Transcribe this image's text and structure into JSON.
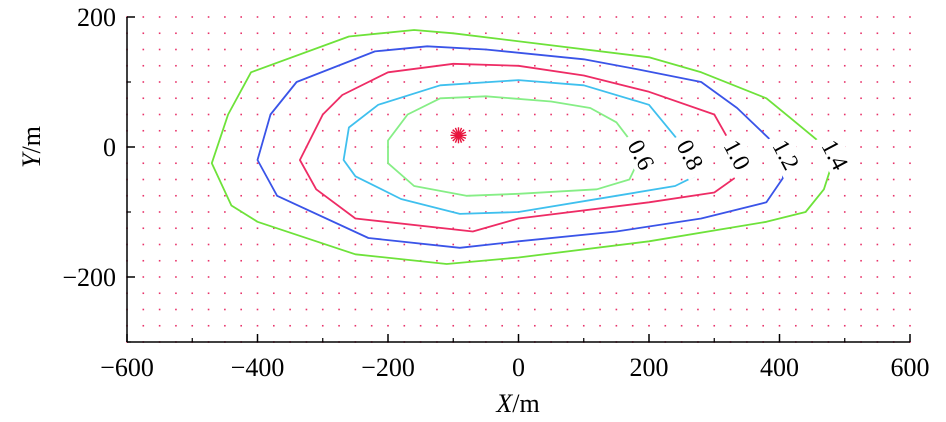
{
  "chart_data": {
    "type": "contour",
    "xlabel": {
      "var": "X",
      "unit": "/m"
    },
    "ylabel": {
      "var": "Y",
      "unit": "/m"
    },
    "xlim": [
      -600,
      600
    ],
    "ylim": [
      -300,
      200
    ],
    "xticks": [
      -600,
      -400,
      -200,
      0,
      200,
      400,
      600
    ],
    "yticks": [
      -200,
      0,
      200
    ],
    "grid": "dotted",
    "grid_color": "#e8336a",
    "source": {
      "x": -92,
      "y": 18,
      "color": "#e8143c"
    },
    "series": [
      {
        "name": "0.6",
        "color": "#86ee86",
        "label_at": [
          188,
          -12
        ],
        "label_angle": 62,
        "points": [
          [
            188,
            -12
          ],
          [
            170,
            -50
          ],
          [
            120,
            -65
          ],
          [
            0,
            -72
          ],
          [
            -80,
            -75
          ],
          [
            -160,
            -60
          ],
          [
            -200,
            -25
          ],
          [
            -200,
            10
          ],
          [
            -170,
            50
          ],
          [
            -120,
            75
          ],
          [
            -50,
            78
          ],
          [
            50,
            70
          ],
          [
            110,
            60
          ],
          [
            150,
            38
          ],
          [
            188,
            -12
          ]
        ]
      },
      {
        "name": "0.8",
        "color": "#3fc0ee",
        "label_at": [
          263,
          -12
        ],
        "label_angle": 62,
        "points": [
          [
            263,
            -12
          ],
          [
            270,
            -45
          ],
          [
            240,
            -60
          ],
          [
            150,
            -75
          ],
          [
            0,
            -100
          ],
          [
            -90,
            -103
          ],
          [
            -180,
            -80
          ],
          [
            -250,
            -45
          ],
          [
            -268,
            -20
          ],
          [
            -260,
            30
          ],
          [
            -215,
            65
          ],
          [
            -120,
            95
          ],
          [
            0,
            103
          ],
          [
            100,
            95
          ],
          [
            200,
            65
          ],
          [
            263,
            -12
          ]
        ]
      },
      {
        "name": "1.0",
        "color": "#ee2c65",
        "label_at": [
          335,
          -12
        ],
        "label_angle": 62,
        "points": [
          [
            335,
            -12
          ],
          [
            335,
            -45
          ],
          [
            300,
            -70
          ],
          [
            200,
            -85
          ],
          [
            0,
            -110
          ],
          [
            -70,
            -130
          ],
          [
            -250,
            -110
          ],
          [
            -310,
            -65
          ],
          [
            -335,
            -20
          ],
          [
            -300,
            50
          ],
          [
            -270,
            80
          ],
          [
            -200,
            115
          ],
          [
            -100,
            128
          ],
          [
            0,
            125
          ],
          [
            100,
            110
          ],
          [
            200,
            85
          ],
          [
            300,
            50
          ],
          [
            335,
            -12
          ]
        ]
      },
      {
        "name": "1.2",
        "color": "#3a54e8",
        "label_at": [
          410,
          -12
        ],
        "label_angle": 62,
        "points": [
          [
            410,
            -12
          ],
          [
            405,
            -48
          ],
          [
            380,
            -85
          ],
          [
            280,
            -110
          ],
          [
            150,
            -130
          ],
          [
            0,
            -145
          ],
          [
            -90,
            -155
          ],
          [
            -230,
            -140
          ],
          [
            -370,
            -75
          ],
          [
            -400,
            -20
          ],
          [
            -380,
            50
          ],
          [
            -340,
            100
          ],
          [
            -220,
            147
          ],
          [
            -140,
            155
          ],
          [
            -50,
            150
          ],
          [
            100,
            135
          ],
          [
            180,
            120
          ],
          [
            280,
            100
          ],
          [
            335,
            60
          ],
          [
            410,
            -12
          ]
        ]
      },
      {
        "name": "1.4",
        "color": "#6ee23a",
        "label_at": [
          485,
          -12
        ],
        "label_angle": 62,
        "points": [
          [
            485,
            -12
          ],
          [
            468,
            -65
          ],
          [
            440,
            -100
          ],
          [
            380,
            -115
          ],
          [
            200,
            -145
          ],
          [
            0,
            -170
          ],
          [
            -110,
            -180
          ],
          [
            -250,
            -165
          ],
          [
            -400,
            -115
          ],
          [
            -440,
            -90
          ],
          [
            -470,
            -25
          ],
          [
            -445,
            50
          ],
          [
            -410,
            115
          ],
          [
            -260,
            170
          ],
          [
            -160,
            180
          ],
          [
            -100,
            175
          ],
          [
            200,
            138
          ],
          [
            280,
            115
          ],
          [
            380,
            75
          ],
          [
            420,
            42
          ],
          [
            485,
            -12
          ]
        ]
      }
    ]
  }
}
